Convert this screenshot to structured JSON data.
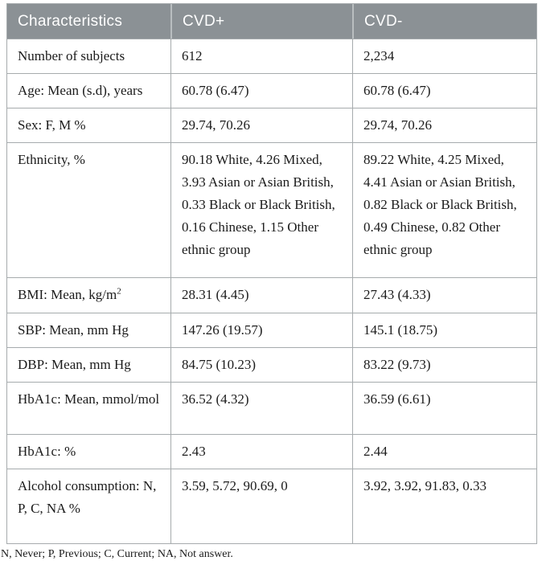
{
  "header": {
    "columns": [
      "Characteristics",
      "CVD+",
      "CVD-"
    ]
  },
  "rows": [
    {
      "label": "Number of subjects",
      "values": [
        "612",
        "2,234"
      ]
    },
    {
      "label": "Age: Mean (s.d), years",
      "values": [
        "60.78 (6.47)",
        "60.78 (6.47)"
      ]
    },
    {
      "label": "Sex: F, M %",
      "values": [
        "29.74, 70.26",
        "29.74, 70.26"
      ]
    },
    {
      "label": "Ethnicity, %",
      "values": [
        "90.18 White, 4.26 Mixed, 3.93 Asian or Asian British, 0.33 Black or Black British, 0.16 Chinese, 1.15 Other ethnic group",
        "89.22 White, 4.25 Mixed, 4.41 Asian or Asian British, 0.82 Black or Black British, 0.49 Chinese, 0.82 Other ethnic group"
      ]
    },
    {
      "label": "BMI: Mean, kg/m",
      "label_sup": "2",
      "values": [
        "28.31 (4.45)",
        "27.43 (4.33)"
      ]
    },
    {
      "label": "SBP: Mean, mm Hg",
      "values": [
        "147.26 (19.57)",
        "145.1 (18.75)"
      ]
    },
    {
      "label": "DBP: Mean, mm Hg",
      "values": [
        "84.75 (10.23)",
        "83.22 (9.73)"
      ]
    },
    {
      "label": "HbA1c: Mean, mmol/mol",
      "values": [
        "36.52 (4.32)",
        "36.59 (6.61)"
      ]
    },
    {
      "label": "HbA1c: %",
      "values": [
        "2.43",
        "2.44"
      ]
    },
    {
      "label": "Alcohol consumption: N, P, C, NA %",
      "values": [
        "3.59, 5.72, 90.69, 0",
        "3.92, 3.92, 91.83, 0.33"
      ]
    }
  ],
  "footnote": "N, Never; P, Previous; C, Current; NA, Not answer.",
  "colors": {
    "header_bg": "#8b9195",
    "header_text": "#ffffff",
    "border": "#a6abad",
    "body_text": "#1b1b1b"
  }
}
